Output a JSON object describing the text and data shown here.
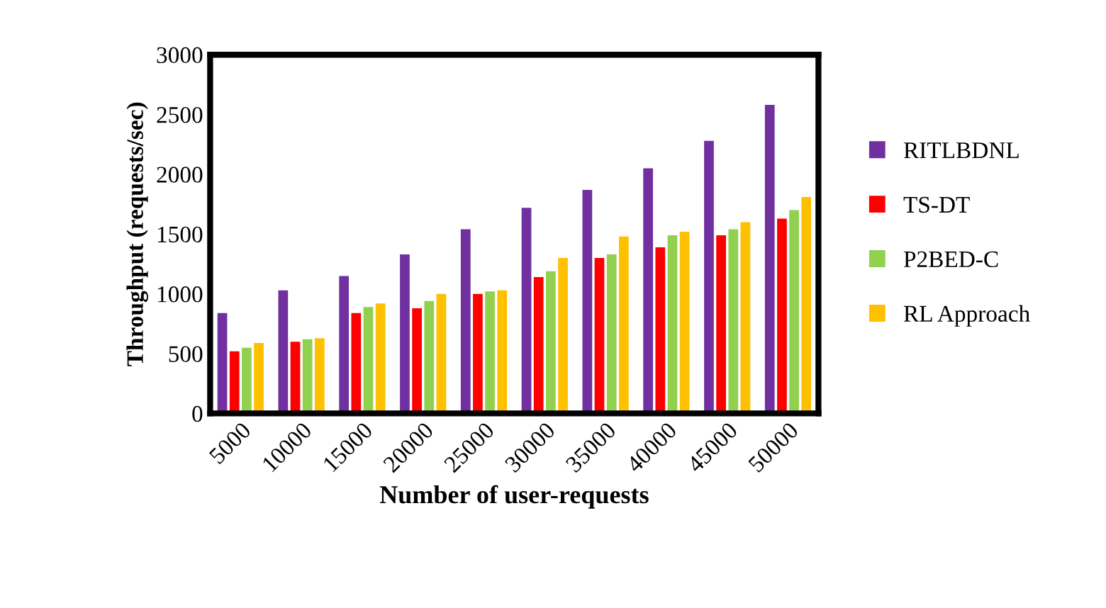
{
  "chart_data": {
    "type": "bar",
    "xlabel": "Number of user-requests",
    "ylabel": "Throughput (requests/sec)",
    "categories": [
      "5000",
      "10000",
      "15000",
      "20000",
      "25000",
      "30000",
      "35000",
      "40000",
      "45000",
      "50000"
    ],
    "series": [
      {
        "name": "RITLBDNL",
        "color": "#7030a0",
        "values": [
          840,
          1030,
          1150,
          1330,
          1540,
          1720,
          1870,
          2050,
          2280,
          2580
        ]
      },
      {
        "name": "TS-DT",
        "color": "#ff0000",
        "values": [
          520,
          600,
          840,
          880,
          1000,
          1140,
          1300,
          1390,
          1490,
          1630
        ]
      },
      {
        "name": "P2BED-C",
        "color": "#92d050",
        "values": [
          550,
          620,
          890,
          940,
          1020,
          1190,
          1330,
          1490,
          1540,
          1700
        ]
      },
      {
        "name": "RL Approach",
        "color": "#ffc000",
        "values": [
          590,
          630,
          920,
          1000,
          1030,
          1300,
          1480,
          1520,
          1600,
          1810
        ]
      }
    ],
    "ylim": [
      0,
      3000
    ],
    "yticks": [
      0,
      500,
      1000,
      1500,
      2000,
      2500,
      3000
    ],
    "grid": false,
    "legend": "right"
  }
}
